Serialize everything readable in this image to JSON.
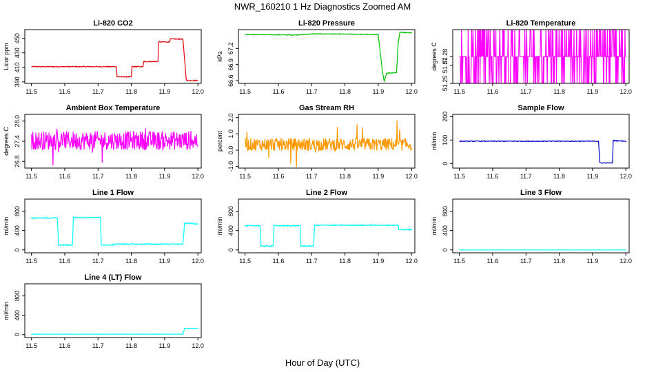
{
  "figure": {
    "title": "NWR_160210  1 Hz Diagnostics Zoomed AM",
    "xlabel": "Hour of Day (UTC)"
  },
  "chart_data": [
    {
      "type": "line",
      "title": "Li-820 CO2",
      "ylabel": "Licor ppm",
      "color": "#e8000b",
      "xlim": [
        11.48,
        12.01
      ],
      "ylim": [
        388,
        462
      ],
      "xticks": [
        "11.5",
        "11.6",
        "11.7",
        "11.8",
        "11.9",
        "12.0"
      ],
      "yticks": [
        {
          "v": 390,
          "label": "390"
        },
        {
          "v": 410,
          "label": "410"
        },
        {
          "v": 430,
          "label": "430"
        },
        {
          "v": 450,
          "label": "450"
        }
      ],
      "noise": 0.6,
      "x": [
        11.5,
        11.755,
        11.757,
        11.8,
        11.802,
        11.835,
        11.837,
        11.88,
        11.882,
        11.915,
        11.917,
        11.955,
        11.965,
        11.967,
        12.0
      ],
      "y": [
        411,
        411,
        397,
        397,
        411,
        411,
        418,
        418,
        445,
        445,
        449,
        449,
        393,
        392,
        392
      ]
    },
    {
      "type": "line",
      "title": "Li-820 Pressure",
      "ylabel": "kPa",
      "color": "#00c000",
      "xlim": [
        11.48,
        12.01
      ],
      "ylim": [
        66.55,
        67.55
      ],
      "xticks": [
        "11.5",
        "11.6",
        "11.7",
        "11.8",
        "11.9",
        "12.0"
      ],
      "yticks": [
        {
          "v": 66.6,
          "label": "66.6"
        },
        {
          "v": 66.9,
          "label": "66.9"
        },
        {
          "v": 67.2,
          "label": "67.2"
        }
      ],
      "noise": 0.006,
      "x": [
        11.5,
        11.65,
        11.7,
        11.75,
        11.9,
        11.912,
        11.918,
        11.925,
        11.955,
        11.96,
        11.965,
        12.0
      ],
      "y": [
        67.46,
        67.45,
        67.47,
        67.47,
        67.46,
        66.8,
        66.58,
        66.74,
        66.75,
        67.3,
        67.5,
        67.49
      ]
    },
    {
      "type": "line",
      "title": "Li-820 Temperature",
      "ylabel": "degrees C",
      "color": "#ff00ff",
      "xlim": [
        11.48,
        12.01
      ],
      "ylim": [
        51.25,
        51.31
      ],
      "xticks": [
        "11.5",
        "11.6",
        "11.7",
        "11.8",
        "11.9",
        "12.0"
      ],
      "yticks": [
        {
          "v": 51.25,
          "label": "51.25"
        },
        {
          "v": 51.27,
          "label": "51.27"
        },
        {
          "v": 51.28,
          "label": "51.28"
        }
      ],
      "mode": "quantized",
      "levels": [
        51.25,
        51.28,
        51.31
      ],
      "base": 51.28,
      "flip": 0.5
    },
    {
      "type": "line",
      "title": "Ambient Box Temperature",
      "ylabel": "degrees C",
      "color": "#ff00ff",
      "xlim": [
        11.48,
        12.01
      ],
      "ylim": [
        26.6,
        28.2
      ],
      "xticks": [
        "11.5",
        "11.6",
        "11.7",
        "11.8",
        "11.9",
        "12.0"
      ],
      "yticks": [
        {
          "v": 26.8,
          "label": "26.8"
        },
        {
          "v": 27.4,
          "label": "27.4"
        },
        {
          "v": 28.0,
          "label": "28.0"
        }
      ],
      "mode": "noise",
      "center": 27.42,
      "amp": 0.28,
      "spike": 0.6
    },
    {
      "type": "line",
      "title": "Gas Stream RH",
      "ylabel": "percent",
      "color": "#ff9900",
      "xlim": [
        11.48,
        12.01
      ],
      "ylim": [
        -1.1,
        2.2
      ],
      "xticks": [
        "11.5",
        "11.6",
        "11.7",
        "11.8",
        "11.9",
        "12.0"
      ],
      "yticks": [
        {
          "v": -1,
          "label": "-1.0"
        },
        {
          "v": 0,
          "label": "0.0"
        },
        {
          "v": 1,
          "label": "1.0"
        },
        {
          "v": 2,
          "label": "2.0"
        }
      ],
      "mode": "noise",
      "center": 0.35,
      "amp": 0.4,
      "spike": 1.5
    },
    {
      "type": "line",
      "title": "Sample Flow",
      "ylabel": "ml/min",
      "color": "#0000cc",
      "xlim": [
        11.48,
        12.01
      ],
      "ylim": [
        -20,
        210
      ],
      "xticks": [
        "11.5",
        "11.6",
        "11.7",
        "11.8",
        "11.9",
        "12.0"
      ],
      "yticks": [
        {
          "v": 0,
          "label": "0"
        },
        {
          "v": 100,
          "label": "100"
        },
        {
          "v": 200,
          "label": "200"
        }
      ],
      "noise": 1.5,
      "x": [
        11.5,
        11.918,
        11.922,
        11.96,
        11.962,
        12.0
      ],
      "y": [
        95,
        95,
        2,
        2,
        98,
        95
      ]
    },
    {
      "type": "line",
      "title": "Line 1 Flow",
      "ylabel": "ml/min",
      "color": "#00ffff",
      "xlim": [
        11.48,
        12.01
      ],
      "ylim": [
        -60,
        1050
      ],
      "xticks": [
        "11.5",
        "11.6",
        "11.7",
        "11.8",
        "11.9",
        "12.0"
      ],
      "yticks": [
        {
          "v": 0,
          "label": "0"
        },
        {
          "v": 400,
          "label": "400"
        },
        {
          "v": 800,
          "label": "800"
        }
      ],
      "noise": 10,
      "x": [
        11.5,
        11.578,
        11.581,
        11.623,
        11.626,
        11.707,
        11.71,
        11.745,
        11.748,
        11.955,
        11.96,
        12.0
      ],
      "y": [
        660,
        660,
        100,
        100,
        670,
        670,
        100,
        100,
        120,
        120,
        550,
        540
      ]
    },
    {
      "type": "line",
      "title": "Line 2 Flow",
      "ylabel": "ml/min",
      "color": "#00ffff",
      "xlim": [
        11.48,
        12.01
      ],
      "ylim": [
        -60,
        1050
      ],
      "xticks": [
        "11.5",
        "11.6",
        "11.7",
        "11.8",
        "11.9",
        "12.0"
      ],
      "yticks": [
        {
          "v": 0,
          "label": "0"
        },
        {
          "v": 400,
          "label": "400"
        },
        {
          "v": 800,
          "label": "800"
        }
      ],
      "noise": 10,
      "x": [
        11.5,
        11.545,
        11.548,
        11.584,
        11.587,
        11.665,
        11.668,
        11.706,
        11.709,
        11.96,
        11.962,
        12.0
      ],
      "y": [
        500,
        500,
        80,
        80,
        500,
        500,
        80,
        80,
        510,
        510,
        420,
        420
      ]
    },
    {
      "type": "line",
      "title": "Line 3 Flow",
      "ylabel": "ml/min",
      "color": "#00ffff",
      "xlim": [
        11.48,
        12.01
      ],
      "ylim": [
        -60,
        1050
      ],
      "xticks": [
        "11.5",
        "11.6",
        "11.7",
        "11.8",
        "11.9",
        "12.0"
      ],
      "yticks": [
        {
          "v": 0,
          "label": "0"
        },
        {
          "v": 400,
          "label": "400"
        },
        {
          "v": 800,
          "label": "800"
        }
      ],
      "noise": 2,
      "x": [
        11.5,
        12.0
      ],
      "y": [
        0,
        0
      ]
    },
    {
      "type": "line",
      "title": "Line 4 (LT) Flow",
      "ylabel": "ml/min",
      "color": "#00ffff",
      "xlim": [
        11.48,
        12.01
      ],
      "ylim": [
        -60,
        1050
      ],
      "xticks": [
        "11.5",
        "11.6",
        "11.7",
        "11.8",
        "11.9",
        "12.0"
      ],
      "yticks": [
        {
          "v": 0,
          "label": "0"
        },
        {
          "v": 400,
          "label": "400"
        },
        {
          "v": 800,
          "label": "800"
        }
      ],
      "noise": 3,
      "x": [
        11.5,
        11.955,
        11.96,
        12.0
      ],
      "y": [
        10,
        10,
        130,
        130
      ]
    }
  ]
}
